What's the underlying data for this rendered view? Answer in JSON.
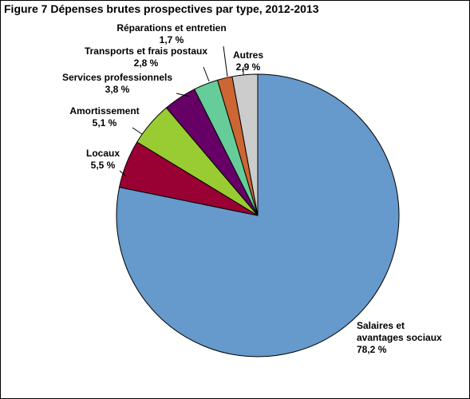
{
  "chart_data": {
    "type": "pie",
    "title": "Figure 7  Dépenses brutes prospectives par type, 2012-2013",
    "unit": "%",
    "slices": [
      {
        "name": "Salaires et avantages sociaux",
        "label_lines": [
          "Salaires et",
          "avantages sociaux"
        ],
        "value": 78.2,
        "value_label": "78,2 %",
        "color": "#6699CC"
      },
      {
        "name": "Locaux",
        "label_lines": [
          "Locaux"
        ],
        "value": 5.5,
        "value_label": "5,5 %",
        "color": "#990033"
      },
      {
        "name": "Amortissement",
        "label_lines": [
          "Amortissement"
        ],
        "value": 5.1,
        "value_label": "5,1 %",
        "color": "#99CC33"
      },
      {
        "name": "Services professionnels",
        "label_lines": [
          "Services professionnels"
        ],
        "value": 3.8,
        "value_label": "3,8 %",
        "color": "#660066"
      },
      {
        "name": "Transports et frais postaux",
        "label_lines": [
          "Transports et frais postaux"
        ],
        "value": 2.8,
        "value_label": "2,8 %",
        "color": "#66CC99"
      },
      {
        "name": "Réparations et entretien",
        "label_lines": [
          "Réparations et entretien"
        ],
        "value": 1.7,
        "value_label": "1,7 %",
        "color": "#CC6633"
      },
      {
        "name": "Autres",
        "label_lines": [
          "Autres"
        ],
        "value": 2.9,
        "value_label": "2,9 %",
        "color": "#CCCCCC"
      }
    ]
  }
}
